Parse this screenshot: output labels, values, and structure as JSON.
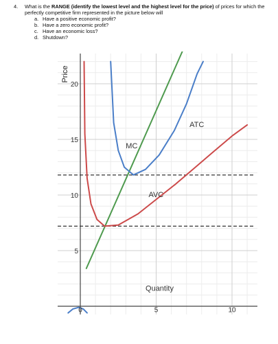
{
  "question": {
    "number": "4.",
    "stem_prefix": "What is the ",
    "stem_bold": "RANGE (identify the lowest level and the highest level for the price)",
    "stem_suffix": " of prices for which the",
    "stem_line2": "perfectly competitive firm represented in the picture below will",
    "options": [
      {
        "letter": "a.",
        "text": "Have a positive economic profit?"
      },
      {
        "letter": "b.",
        "text": "Have a zero economic profit?"
      },
      {
        "letter": "c.",
        "text": "Have an economic loss?"
      },
      {
        "letter": "d.",
        "text": "Shutdown?"
      }
    ]
  },
  "chart_data": {
    "type": "line",
    "xlabel": "Quantity",
    "ylabel": "Price",
    "xlim": [
      0,
      11
    ],
    "ylim": [
      0,
      22
    ],
    "x_ticks": [
      {
        "value": 0,
        "label": "0"
      },
      {
        "value": 5,
        "label": "5"
      },
      {
        "value": 10,
        "label": "10"
      }
    ],
    "y_ticks": [
      {
        "value": 5,
        "label": "5"
      },
      {
        "value": 10,
        "label": "10"
      },
      {
        "value": 15,
        "label": "15"
      },
      {
        "value": 20,
        "label": "20"
      }
    ],
    "grid": true,
    "dashed_price_levels": [
      11.8,
      7.2
    ],
    "series": [
      {
        "name": "MC",
        "color": "#4e9a4e",
        "points": [
          [
            0.4,
            3.4
          ],
          [
            10,
            33
          ]
        ]
      },
      {
        "name": "ATC",
        "color": "#4a7ec8",
        "points": [
          [
            2.0,
            22
          ],
          [
            2.2,
            16.5
          ],
          [
            2.5,
            14.0
          ],
          [
            2.9,
            12.5
          ],
          [
            3.5,
            11.8
          ],
          [
            4.3,
            12.3
          ],
          [
            5.2,
            13.6
          ],
          [
            6.2,
            15.8
          ],
          [
            7.0,
            18.2
          ],
          [
            7.7,
            20.9
          ],
          [
            8.1,
            22
          ]
        ]
      },
      {
        "name": "AVC",
        "color": "#cc4a4a",
        "points": [
          [
            0.25,
            22
          ],
          [
            0.3,
            15.5
          ],
          [
            0.45,
            11.5
          ],
          [
            0.7,
            9.2
          ],
          [
            1.1,
            7.8
          ],
          [
            1.6,
            7.2
          ],
          [
            2.5,
            7.3
          ],
          [
            3.8,
            8.3
          ],
          [
            5.0,
            9.6
          ],
          [
            6.3,
            11.0
          ],
          [
            7.5,
            12.4
          ],
          [
            8.7,
            13.8
          ],
          [
            10.0,
            15.3
          ],
          [
            11.0,
            16.3
          ]
        ]
      },
      {
        "name": "",
        "color": "#4a7ec8",
        "points": [
          [
            -0.8,
            -0.6
          ],
          [
            -0.5,
            -0.25
          ],
          [
            -0.1,
            -0.1
          ],
          [
            0.2,
            -0.25
          ],
          [
            0.45,
            -0.6
          ]
        ]
      }
    ],
    "annotations": [
      {
        "text": "MC",
        "x": 3.0,
        "y": 14.2
      },
      {
        "text": "ATC",
        "x": 7.2,
        "y": 16.1
      },
      {
        "text": "AVC",
        "x": 4.5,
        "y": 9.8
      },
      {
        "text": "Quantity",
        "x": 4.3,
        "y": 1.4
      }
    ]
  }
}
